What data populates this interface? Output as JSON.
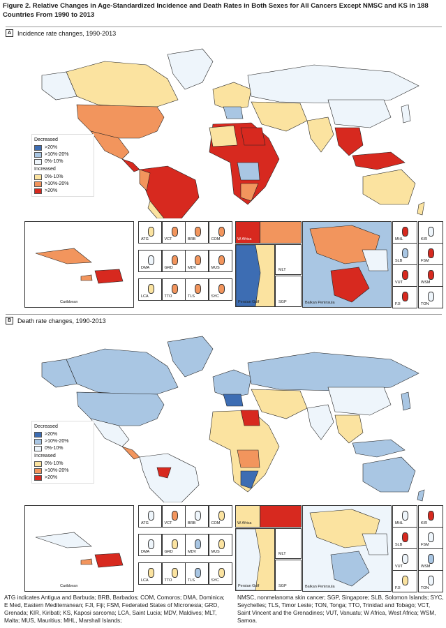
{
  "figure_title": "Figure 2. Relative Changes in Age-Standardized Incidence and Death Rates in Both Sexes for All Cancers Except NMSC and KS in 188 Countries From 1990 to 2013",
  "colors": {
    "dec_gt20": "#3d6db3",
    "dec_10_20": "#a9c6e3",
    "dec_0_10": "#eef5fb",
    "inc_0_10": "#fbe3a0",
    "inc_10_20": "#f2955d",
    "inc_gt20": "#d7291f"
  },
  "panels": [
    {
      "letter": "A",
      "title": "Incidence rate changes, 1990-2013",
      "legend": {
        "decreased_label": "Decreased",
        "decreased_items": [
          ">20%",
          ">10%-20%",
          "0%-10%"
        ],
        "increased_label": "Increased",
        "increased_items": [
          "0%-10%",
          ">10%-20%",
          ">20%"
        ]
      },
      "insets": {
        "caribbean": "Caribbean",
        "w_africa": "W Africa",
        "persian_gulf": "Persian Gulf",
        "balkan": "Balkan Peninsula",
        "islands": [
          "ATG",
          "VCT",
          "BRB",
          "COM",
          "DMA",
          "GRD",
          "MDV",
          "MUS",
          "LCA",
          "TTO",
          "TLS",
          "SYC"
        ],
        "gulf_side": [
          "MLT",
          "SGP"
        ],
        "pacific": [
          "MHL",
          "KIR",
          "SLB",
          "FSM",
          "VUT",
          "WSM",
          "FJI",
          "TON"
        ]
      }
    },
    {
      "letter": "B",
      "title": "Death rate changes, 1990-2013",
      "legend": {
        "decreased_label": "Decreased",
        "decreased_items": [
          ">20%",
          ">10%-20%",
          "0%-10%"
        ],
        "increased_label": "Increased",
        "increased_items": [
          "0%-10%",
          ">10%-20%",
          ">20%"
        ]
      },
      "insets": {
        "caribbean": "Caribbean",
        "w_africa": "W Africa",
        "persian_gulf": "Persian Gulf",
        "balkan": "Balkan Peninsula",
        "islands": [
          "ATG",
          "VCT",
          "BRB",
          "COM",
          "DMA",
          "GRD",
          "MDV",
          "MUS",
          "LCA",
          "TTO",
          "TLS",
          "SYC"
        ],
        "gulf_side": [
          "MLT",
          "SGP"
        ],
        "pacific": [
          "MHL",
          "KIR",
          "SLB",
          "FSM",
          "VUT",
          "WSM",
          "FJI",
          "TON"
        ]
      }
    }
  ],
  "footnote_left": "ATG indicates Antigua and Barbuda; BRB, Barbados; COM, Comoros; DMA, Dominica; E Med, Eastern Mediterranean; FJI, Fiji; FSM, Federated States of Micronesia; GRD, Grenada; KIR, Kiribati; KS, Kaposi sarcoma; LCA, Saint Lucia; MDV, Maldives; MLT, Malta; MUS, Mauritius; MHL, Marshall Islands;",
  "footnote_right": "NMSC, nonmelanoma skin cancer; SGP, Singapore; SLB, Solomon Islands; SYC, Seychelles; TLS, Timor Leste; TON, Tonga; TTO, Trinidad and Tobago; VCT, Saint Vincent and the Grenadines; VUT, Vanuatu; W Africa, West Africa; WSM, Samoa."
}
